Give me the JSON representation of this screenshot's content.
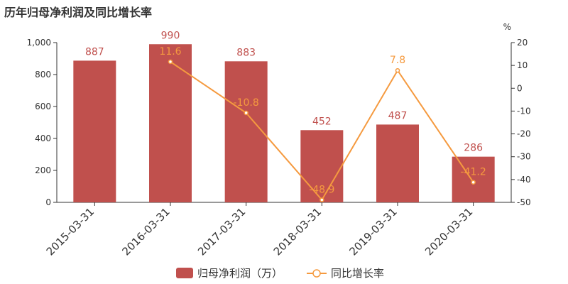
{
  "title": "历年归母净利润及同比增长率",
  "colors": {
    "bar": "#c0504d",
    "line": "#f59a3f",
    "axis": "#333333"
  },
  "chart_data": {
    "type": "bar",
    "categories": [
      "2015-03-31",
      "2016-03-31",
      "2017-03-31",
      "2018-03-31",
      "2019-03-31",
      "2020-03-31"
    ],
    "bar_value_labels": [
      "887",
      "990",
      "883",
      "452",
      "487",
      "286"
    ],
    "line_value_labels": [
      "11.6",
      "-10.8",
      "-48.9",
      "7.8",
      "-41.2"
    ],
    "series": [
      {
        "name": "归母净利润（万）",
        "type": "bar",
        "axis": "left",
        "values": [
          887,
          990,
          883,
          452,
          487,
          286
        ]
      },
      {
        "name": "同比增长率",
        "type": "line",
        "axis": "right",
        "values": [
          null,
          11.6,
          -10.8,
          -48.9,
          7.8,
          -41.2
        ]
      }
    ],
    "y_left": {
      "range": [
        0,
        1000
      ],
      "ticks": [
        "0",
        "200",
        "400",
        "600",
        "800",
        "1,000"
      ]
    },
    "y_right": {
      "unit": "%",
      "range": [
        -50,
        20
      ],
      "ticks": [
        "-50",
        "-40",
        "-30",
        "-20",
        "-10",
        "0",
        "10",
        "20"
      ]
    },
    "grid": false,
    "legend_position": "bottom"
  }
}
